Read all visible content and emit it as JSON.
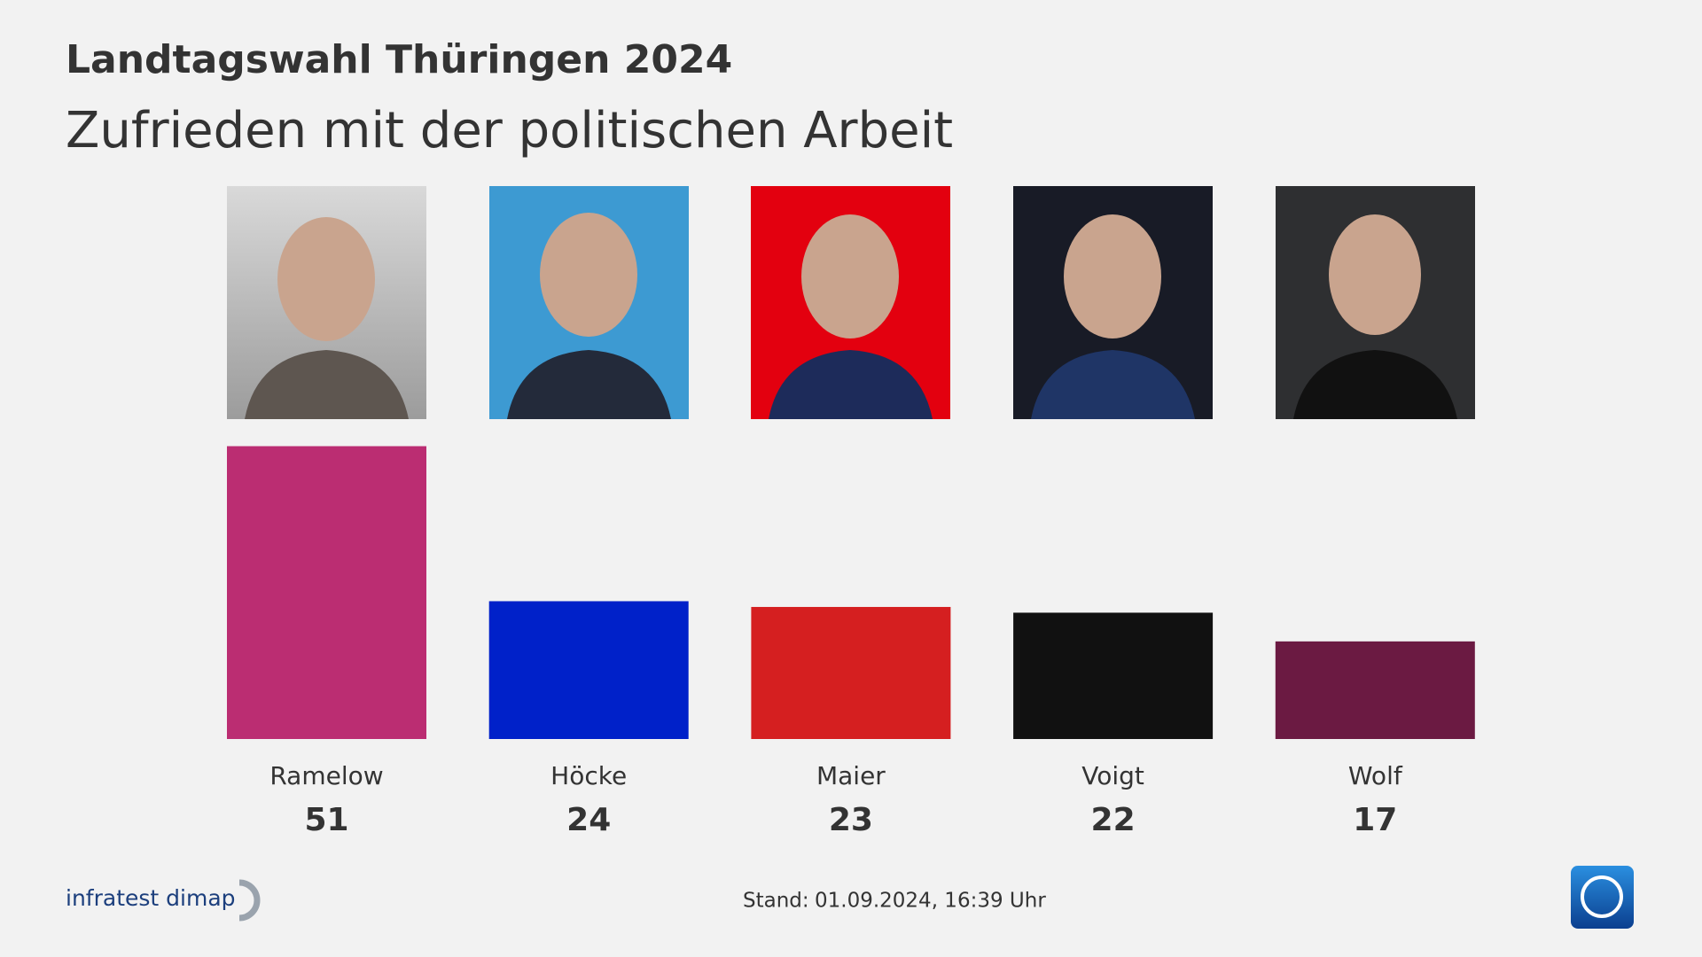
{
  "chart_data": {
    "type": "bar",
    "title": "Landtagswahl Thüringen 2024",
    "subtitle": "Zufrieden mit der politischen Arbeit",
    "categories": [
      "Ramelow",
      "Höcke",
      "Maier",
      "Voigt",
      "Wolf"
    ],
    "values": [
      51,
      24,
      23,
      22,
      17
    ],
    "colors": [
      "#bb2d72",
      "#0021c9",
      "#d51f20",
      "#111111",
      "#6b1a42"
    ],
    "source": "infratest dimap",
    "stand_label": "Stand:",
    "stand": "01.09.2024, 16:39 Uhr"
  }
}
